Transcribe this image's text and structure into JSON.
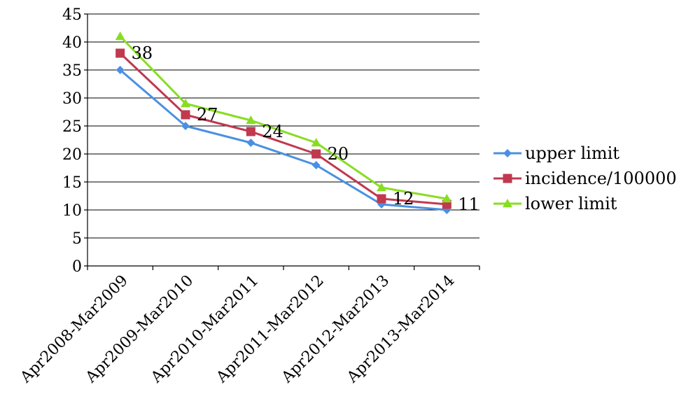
{
  "chart_data": {
    "type": "line",
    "categories": [
      "Apr2008-Mar2009",
      "Apr2009-Mar2010",
      "Apr2010-Mar2011",
      "Apr2011-Mar2012",
      "Apr2012-Mar2013",
      "Apr2013-Mar2014"
    ],
    "ylim": [
      0,
      45
    ],
    "yticks": [
      0,
      5,
      10,
      15,
      20,
      25,
      30,
      35,
      40,
      45
    ],
    "grid": true,
    "legend_position": "right",
    "series": [
      {
        "name": "upper limit",
        "values": [
          35,
          25,
          22,
          18,
          11,
          10
        ],
        "color": "#4A90E2",
        "marker": "diamond"
      },
      {
        "name": "incidence/100000",
        "values": [
          38,
          27,
          24,
          20,
          12,
          11
        ],
        "color": "#C0394F",
        "marker": "square"
      },
      {
        "name": "lower limit",
        "values": [
          41,
          29,
          26,
          22,
          14,
          12
        ],
        "color": "#88DD22",
        "marker": "triangle"
      }
    ],
    "data_labels": {
      "series": "incidence/100000",
      "values": [
        "38",
        "27",
        "24",
        "20",
        "12",
        "11"
      ]
    }
  }
}
